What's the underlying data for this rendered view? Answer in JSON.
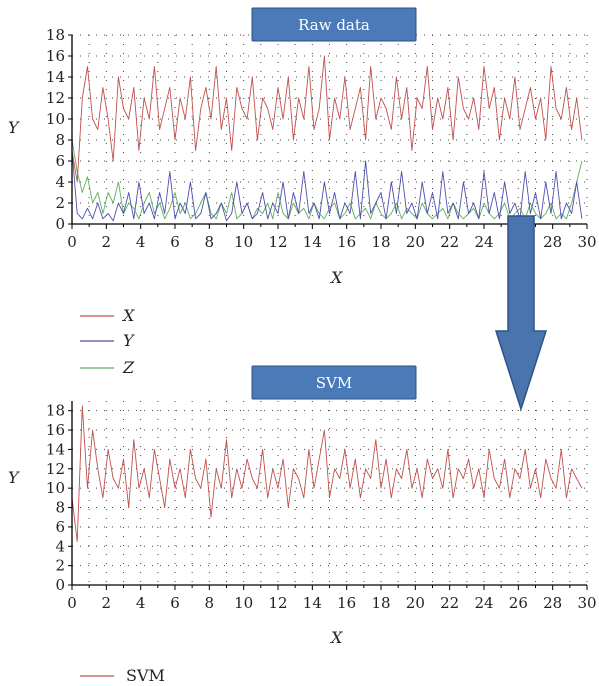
{
  "colors": {
    "x": "#c0504d",
    "y": "#4f4fb0",
    "z": "#5fb05f",
    "svm": "#c0504d",
    "title_box": "#4a7ab8",
    "title_border": "#2c4f7c",
    "arrow": "#4a74ad",
    "arrow_border": "#2e5487"
  },
  "chart_data": [
    {
      "type": "line",
      "title": "Raw data",
      "xlabel": "X",
      "ylabel": "Y",
      "xlim": [
        0,
        30
      ],
      "ylim": [
        0,
        18
      ],
      "xticks": [
        "0",
        "2",
        "4",
        "6",
        "8",
        "10",
        "12",
        "14",
        "16",
        "18",
        "20",
        "22",
        "24",
        "26",
        "28",
        "30"
      ],
      "yticks": [
        "0",
        "2",
        "4",
        "6",
        "8",
        "10",
        "12",
        "14",
        "16",
        "18"
      ],
      "grid": "dotted",
      "legend_position": "bottom-left",
      "series": [
        {
          "name": "X",
          "x": [
            0,
            0.3,
            0.6,
            0.9,
            1.2,
            1.5,
            1.8,
            2.1,
            2.4,
            2.7,
            3.0,
            3.3,
            3.6,
            3.9,
            4.2,
            4.5,
            4.8,
            5.1,
            5.4,
            5.7,
            6.0,
            6.3,
            6.6,
            6.9,
            7.2,
            7.5,
            7.8,
            8.1,
            8.4,
            8.7,
            9.0,
            9.3,
            9.6,
            9.9,
            10.2,
            10.5,
            10.8,
            11.1,
            11.4,
            11.7,
            12.0,
            12.3,
            12.6,
            12.9,
            13.2,
            13.5,
            13.8,
            14.1,
            14.4,
            14.7,
            15.0,
            15.3,
            15.6,
            15.9,
            16.2,
            16.5,
            16.8,
            17.1,
            17.4,
            17.7,
            18.0,
            18.3,
            18.6,
            18.9,
            19.2,
            19.5,
            19.8,
            20.1,
            20.4,
            20.7,
            21.0,
            21.3,
            21.6,
            21.9,
            22.2,
            22.5,
            22.8,
            23.1,
            23.4,
            23.7,
            24.0,
            24.3,
            24.6,
            24.9,
            25.2,
            25.5,
            25.8,
            26.1,
            26.4,
            26.7,
            27.0,
            27.3,
            27.6,
            27.9,
            28.2,
            28.5,
            28.8,
            29.1,
            29.4,
            29.7
          ],
          "values": [
            7,
            4,
            12,
            15,
            10,
            9,
            13,
            10,
            6,
            14,
            11,
            10,
            13,
            7,
            12,
            10,
            15,
            9,
            11,
            13,
            8,
            12,
            10,
            14,
            7,
            11,
            13,
            10,
            15,
            9,
            12,
            7,
            13,
            11,
            10,
            14,
            8,
            12,
            11,
            9,
            13,
            10,
            14,
            8,
            12,
            10,
            15,
            9,
            11,
            16,
            8,
            12,
            10,
            14,
            9,
            11,
            13,
            8,
            15,
            10,
            12,
            11,
            9,
            14,
            10,
            13,
            7,
            12,
            11,
            15,
            9,
            12,
            10,
            13,
            8,
            14,
            11,
            10,
            12,
            9,
            15,
            11,
            13,
            8,
            12,
            10,
            14,
            9,
            11,
            13,
            10,
            12,
            8,
            15,
            11,
            10,
            13,
            9,
            12,
            8
          ]
        },
        {
          "name": "Y",
          "x": [
            0,
            0.3,
            0.6,
            0.9,
            1.2,
            1.5,
            1.8,
            2.1,
            2.4,
            2.7,
            3.0,
            3.3,
            3.6,
            3.9,
            4.2,
            4.5,
            4.8,
            5.1,
            5.4,
            5.7,
            6.0,
            6.3,
            6.6,
            6.9,
            7.2,
            7.5,
            7.8,
            8.1,
            8.4,
            8.7,
            9.0,
            9.3,
            9.6,
            9.9,
            10.2,
            10.5,
            10.8,
            11.1,
            11.4,
            11.7,
            12.0,
            12.3,
            12.6,
            12.9,
            13.2,
            13.5,
            13.8,
            14.1,
            14.4,
            14.7,
            15.0,
            15.3,
            15.6,
            15.9,
            16.2,
            16.5,
            16.8,
            17.1,
            17.4,
            17.7,
            18.0,
            18.3,
            18.6,
            18.9,
            19.2,
            19.5,
            19.8,
            20.1,
            20.4,
            20.7,
            21.0,
            21.3,
            21.6,
            21.9,
            22.2,
            22.5,
            22.8,
            23.1,
            23.4,
            23.7,
            24.0,
            24.3,
            24.6,
            24.9,
            25.2,
            25.5,
            25.8,
            26.1,
            26.4,
            26.7,
            27.0,
            27.3,
            27.6,
            27.9,
            28.2,
            28.5,
            28.8,
            29.1,
            29.4,
            29.7
          ],
          "values": [
            7,
            1,
            0.5,
            1.5,
            0.5,
            2,
            0.5,
            1,
            0.3,
            2,
            1,
            3,
            0.5,
            4,
            1,
            2,
            0.5,
            3,
            1,
            5,
            0.5,
            2,
            1,
            4,
            0.5,
            1,
            3,
            0.5,
            1,
            2,
            0.3,
            1,
            4,
            1,
            2,
            0.5,
            1,
            3,
            0.5,
            2,
            1,
            4,
            0.5,
            3,
            1,
            5,
            1,
            2,
            0.5,
            4,
            1,
            3,
            0.5,
            2,
            1,
            5,
            0.5,
            6,
            1,
            2,
            3,
            0.5,
            4,
            1,
            5,
            1,
            2,
            0.5,
            4,
            1,
            3,
            0.5,
            5,
            1,
            2,
            0.5,
            4,
            1,
            2,
            0.5,
            5,
            1,
            3,
            0.5,
            4,
            1,
            2,
            0.5,
            5,
            1,
            3,
            0.5,
            4,
            1,
            5,
            0.5,
            2,
            1,
            4,
            0.5
          ]
        },
        {
          "name": "Z",
          "x": [
            0,
            0.3,
            0.6,
            0.9,
            1.2,
            1.5,
            1.8,
            2.1,
            2.4,
            2.7,
            3.0,
            3.3,
            3.6,
            3.9,
            4.2,
            4.5,
            4.8,
            5.1,
            5.4,
            5.7,
            6.0,
            6.3,
            6.6,
            6.9,
            7.2,
            7.5,
            7.8,
            8.1,
            8.4,
            8.7,
            9.0,
            9.3,
            9.6,
            9.9,
            10.2,
            10.5,
            10.8,
            11.1,
            11.4,
            11.7,
            12.0,
            12.3,
            12.6,
            12.9,
            13.2,
            13.5,
            13.8,
            14.1,
            14.4,
            14.7,
            15.0,
            15.3,
            15.6,
            15.9,
            16.2,
            16.5,
            16.8,
            17.1,
            17.4,
            17.7,
            18.0,
            18.3,
            18.6,
            18.9,
            19.2,
            19.5,
            19.8,
            20.1,
            20.4,
            20.7,
            21.0,
            21.3,
            21.6,
            21.9,
            22.2,
            22.5,
            22.8,
            23.1,
            23.4,
            23.7,
            24.0,
            24.3,
            24.6,
            24.9,
            25.2,
            25.5,
            25.8,
            26.1,
            26.4,
            26.7,
            27.0,
            27.3,
            27.6,
            27.9,
            28.2,
            28.5,
            28.8,
            29.1,
            29.4,
            29.7
          ],
          "values": [
            8,
            5,
            3,
            4.5,
            2,
            3,
            1,
            3,
            2,
            4,
            1,
            2,
            1.5,
            0.5,
            2,
            3,
            1,
            2,
            0.5,
            1.5,
            3,
            1,
            2,
            0.5,
            1,
            2,
            3,
            1,
            0.5,
            2,
            1,
            3,
            0.5,
            1,
            2,
            0.5,
            1.5,
            1,
            2,
            0.5,
            3,
            1,
            0.5,
            2,
            1,
            1.5,
            0.5,
            2,
            1,
            0.5,
            1.5,
            2,
            0.5,
            1,
            2,
            0.5,
            1,
            1.5,
            0.5,
            2,
            1,
            0.5,
            1,
            2,
            0.5,
            1.5,
            1,
            0.5,
            2,
            1,
            0.5,
            1,
            1.5,
            0.5,
            2,
            1,
            0.5,
            1,
            1.5,
            0.5,
            2,
            1,
            0.5,
            1,
            2,
            0.5,
            1,
            1.5,
            0.5,
            2,
            1,
            0.5,
            1,
            2,
            0.5,
            1,
            0.5,
            2,
            4,
            6
          ]
        }
      ]
    },
    {
      "type": "line",
      "title": "SVM",
      "xlabel": "X",
      "ylabel": "Y",
      "xlim": [
        0,
        30
      ],
      "ylim": [
        0,
        19
      ],
      "xticks": [
        "0",
        "2",
        "4",
        "6",
        "8",
        "10",
        "12",
        "14",
        "16",
        "18",
        "20",
        "22",
        "24",
        "26",
        "28",
        "30"
      ],
      "yticks": [
        "0",
        "2",
        "4",
        "6",
        "8",
        "10",
        "12",
        "14",
        "16",
        "18"
      ],
      "grid": "dotted",
      "legend_position": "bottom-left",
      "series": [
        {
          "name": "SVM",
          "x": [
            0,
            0.3,
            0.6,
            0.9,
            1.2,
            1.5,
            1.8,
            2.1,
            2.4,
            2.7,
            3.0,
            3.3,
            3.6,
            3.9,
            4.2,
            4.5,
            4.8,
            5.1,
            5.4,
            5.7,
            6.0,
            6.3,
            6.6,
            6.9,
            7.2,
            7.5,
            7.8,
            8.1,
            8.4,
            8.7,
            9.0,
            9.3,
            9.6,
            9.9,
            10.2,
            10.5,
            10.8,
            11.1,
            11.4,
            11.7,
            12.0,
            12.3,
            12.6,
            12.9,
            13.2,
            13.5,
            13.8,
            14.1,
            14.4,
            14.7,
            15.0,
            15.3,
            15.6,
            15.9,
            16.2,
            16.5,
            16.8,
            17.1,
            17.4,
            17.7,
            18.0,
            18.3,
            18.6,
            18.9,
            19.2,
            19.5,
            19.8,
            20.1,
            20.4,
            20.7,
            21.0,
            21.3,
            21.6,
            21.9,
            22.2,
            22.5,
            22.8,
            23.1,
            23.4,
            23.7,
            24.0,
            24.3,
            24.6,
            24.9,
            25.2,
            25.5,
            25.8,
            26.1,
            26.4,
            26.7,
            27.0,
            27.3,
            27.6,
            27.9,
            28.2,
            28.5,
            28.8,
            29.1,
            29.4,
            29.7
          ],
          "values": [
            9,
            4.5,
            18.5,
            10,
            16,
            12,
            9,
            14,
            11,
            10,
            13,
            8,
            15,
            10,
            12,
            9,
            14,
            11,
            8,
            13,
            10,
            12,
            9,
            14,
            11,
            10,
            13,
            7,
            12,
            10,
            15,
            9,
            12,
            10,
            13,
            11,
            10,
            14,
            9,
            12,
            10,
            13,
            8,
            12,
            11,
            9,
            14,
            10,
            13,
            16,
            9,
            12,
            11,
            14,
            10,
            13,
            9,
            12,
            11,
            15,
            10,
            13,
            9,
            12,
            11,
            14,
            10,
            12,
            9,
            13,
            11,
            12,
            10,
            14,
            9,
            12,
            11,
            13,
            10,
            12,
            9,
            14,
            11,
            10,
            13,
            9,
            12,
            11,
            14,
            10,
            12,
            9,
            13,
            11,
            10,
            14,
            9,
            12,
            11,
            10
          ]
        }
      ]
    }
  ]
}
